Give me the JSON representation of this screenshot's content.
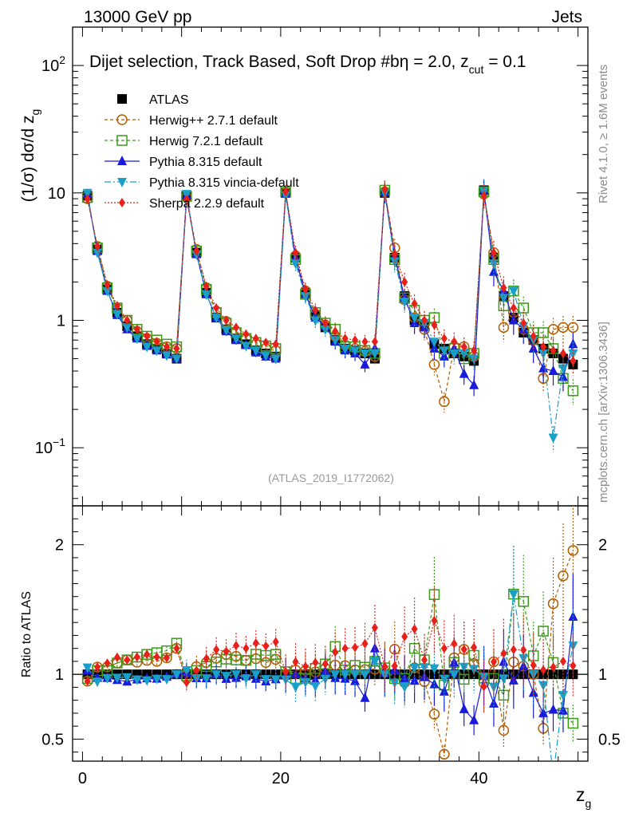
{
  "header": {
    "energy": "13000 GeV pp",
    "category": "Jets"
  },
  "chart_data": {
    "type": "line",
    "title": "Dijet selection, Track Based, Soft Drop #b",
    "title_suffix": "η = 2.0, z",
    "title_sub": "cut",
    "title_tail": " = 0.1",
    "ylabel": "(1/σ) dσ/d z",
    "ylabel_sub": "g",
    "xlabel": "z",
    "xlabel_sub": "g",
    "ratio_ylabel": "Ratio to ATLAS",
    "analysis_id": "(ATLAS_2019_I1772062)",
    "xlim": [
      -1,
      51
    ],
    "ylim": [
      0.035,
      200
    ],
    "yscale": "log",
    "ratio_ylim": [
      0.33,
      2.3
    ],
    "x_ticks": [
      "0",
      "20",
      "40"
    ],
    "y_ticks": [
      "10^2",
      "10",
      "1",
      "10^-1"
    ],
    "ratio_ticks": [
      "0.5",
      "1",
      "2"
    ],
    "legend": [
      {
        "label": "ATLAS",
        "color": "#000000",
        "marker": "square"
      },
      {
        "label": "Herwig++ 2.7.1 default",
        "color": "#b35c00",
        "marker": "circle-open"
      },
      {
        "label": "Herwig 7.2.1 default",
        "color": "#3a9a1a",
        "marker": "square-open"
      },
      {
        "label": "Pythia 8.315 default",
        "color": "#1a1adb",
        "marker": "triangle-up"
      },
      {
        "label": "Pythia 8.315 vincia-default",
        "color": "#1aa0c8",
        "marker": "triangle-down"
      },
      {
        "label": "Sherpa 2.2.9 default",
        "color": "#e8201a",
        "marker": "diamond"
      }
    ],
    "x": [
      0.5,
      1.5,
      2.5,
      3.5,
      4.5,
      5.5,
      6.5,
      7.5,
      8.5,
      9.5,
      10.5,
      11.5,
      12.5,
      13.5,
      14.5,
      15.5,
      16.5,
      17.5,
      18.5,
      19.5,
      20.5,
      21.5,
      22.5,
      23.5,
      24.5,
      25.5,
      26.5,
      27.5,
      28.5,
      29.5,
      30.5,
      31.5,
      32.5,
      33.5,
      34.5,
      35.5,
      36.5,
      37.5,
      38.5,
      39.5,
      40.5,
      41.5,
      42.5,
      43.5,
      44.5,
      45.5,
      46.5,
      47.5,
      48.5,
      49.5
    ],
    "series": [
      {
        "name": "ATLAS",
        "values": [
          9.5,
          3.6,
          1.75,
          1.15,
          0.9,
          0.75,
          0.65,
          0.6,
          0.55,
          0.5,
          9.5,
          3.4,
          1.65,
          1.05,
          0.85,
          0.72,
          0.65,
          0.58,
          0.55,
          0.52,
          10,
          3.1,
          1.65,
          1.1,
          0.88,
          0.7,
          0.6,
          0.58,
          0.55,
          0.5,
          10,
          3.1,
          1.55,
          1.0,
          0.9,
          0.65,
          0.6,
          0.55,
          0.52,
          0.48,
          10.5,
          3.1,
          1.55,
          1.05,
          0.8,
          0.7,
          0.6,
          0.55,
          0.5,
          0.45
        ]
      },
      {
        "name": "Herwig++ 2.7.1 default",
        "values": [
          9,
          3.8,
          1.85,
          1.25,
          1.0,
          0.82,
          0.72,
          0.66,
          0.62,
          0.6,
          9.2,
          3.6,
          1.8,
          1.18,
          0.98,
          0.82,
          0.72,
          0.65,
          0.6,
          0.58,
          10,
          3.2,
          1.7,
          1.12,
          0.92,
          0.75,
          0.64,
          0.6,
          0.57,
          0.52,
          10.2,
          3.7,
          1.45,
          1.05,
          0.85,
          0.45,
          0.23,
          0.62,
          0.62,
          0.52,
          9.8,
          3.4,
          0.88,
          1.15,
          0.85,
          0.7,
          0.35,
          0.85,
          0.88,
          0.88
        ]
      },
      {
        "name": "Herwig 7.2.1 default",
        "values": [
          9.2,
          3.7,
          1.8,
          1.25,
          1.0,
          0.85,
          0.75,
          0.7,
          0.65,
          0.62,
          9.4,
          3.5,
          1.75,
          1.15,
          0.95,
          0.8,
          0.72,
          0.67,
          0.63,
          0.6,
          10.2,
          3.0,
          1.6,
          1.15,
          0.95,
          0.85,
          0.62,
          0.62,
          0.58,
          0.55,
          10.5,
          3.0,
          1.5,
          1.2,
          1.0,
          1.05,
          0.55,
          0.6,
          0.5,
          0.55,
          10.2,
          3.0,
          1.3,
          1.7,
          1.25,
          0.8,
          0.8,
          0.6,
          0.35,
          0.28
        ]
      },
      {
        "name": "Pythia 8.315 default",
        "values": [
          9.8,
          3.5,
          1.7,
          1.1,
          0.85,
          0.72,
          0.63,
          0.58,
          0.54,
          0.5,
          9.6,
          3.3,
          1.6,
          1.05,
          0.82,
          0.7,
          0.64,
          0.56,
          0.52,
          0.5,
          9.9,
          3.1,
          1.6,
          1.05,
          0.9,
          0.68,
          0.58,
          0.55,
          0.45,
          0.6,
          10.1,
          3.2,
          1.5,
          0.95,
          0.88,
          0.6,
          0.52,
          0.6,
          0.38,
          0.31,
          10.4,
          2.4,
          1.7,
          1.0,
          0.85,
          0.6,
          0.42,
          0.4,
          0.36,
          0.65
        ]
      },
      {
        "name": "Pythia 8.315 vincia-default",
        "values": [
          10,
          3.4,
          1.7,
          1.12,
          0.88,
          0.72,
          0.62,
          0.58,
          0.53,
          0.5,
          9.8,
          3.3,
          1.6,
          1.05,
          0.84,
          0.72,
          0.63,
          0.58,
          0.53,
          0.5,
          9.6,
          2.8,
          1.55,
          1.0,
          0.85,
          0.7,
          0.6,
          0.58,
          0.55,
          0.55,
          10,
          2.9,
          1.4,
          1.05,
          0.95,
          0.68,
          0.58,
          0.55,
          0.55,
          0.5,
          10.3,
          2.8,
          1.5,
          1.7,
          0.9,
          0.7,
          0.55,
          0.12,
          0.42,
          0.55
        ]
      },
      {
        "name": "Sherpa 2.2.9 default",
        "values": [
          9.0,
          3.8,
          1.9,
          1.3,
          1.0,
          0.85,
          0.75,
          0.68,
          0.62,
          0.6,
          8.9,
          3.5,
          1.85,
          1.25,
          1.0,
          0.88,
          0.78,
          0.72,
          0.67,
          0.65,
          10.2,
          3.4,
          1.75,
          1.2,
          0.95,
          0.82,
          0.72,
          0.7,
          0.68,
          0.68,
          10.6,
          3.3,
          2.0,
          1.35,
          1.0,
          0.92,
          0.72,
          0.68,
          0.62,
          0.58,
          9.5,
          3.4,
          1.8,
          1.25,
          0.95,
          0.75,
          0.62,
          0.58,
          0.55,
          0.48
        ]
      }
    ]
  },
  "side_labels": {
    "rivet": "Rivet 4.1.0, ≥ 1.6M events",
    "mcplots": "mcplots.cern.ch [arXiv:1306.3436]"
  }
}
